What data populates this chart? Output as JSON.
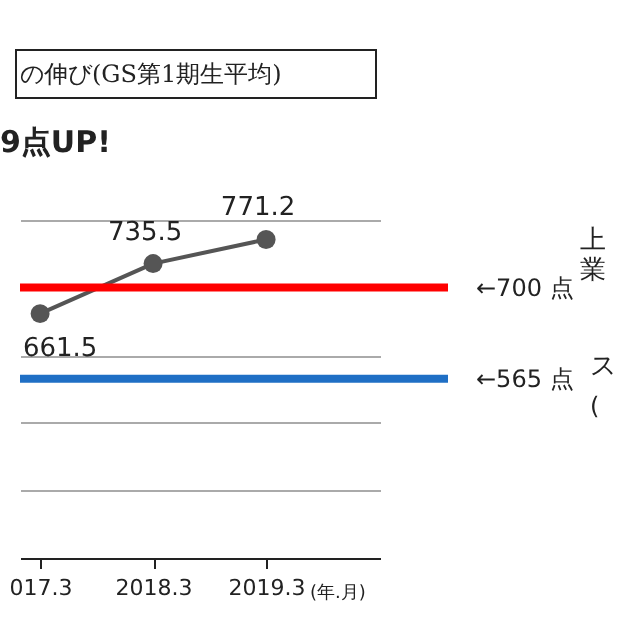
{
  "chart_data": {
    "type": "line",
    "title": "の伸び(GS第1期生平均)",
    "categories": [
      "017.3",
      "2018.3",
      "2019.3"
    ],
    "series": [
      {
        "color": "#555555",
        "values": [
          661.5,
          735.5,
          771.2
        ]
      }
    ],
    "xlabel": "(年.月)",
    "data_labels": true,
    "marker": "circle",
    "line_style": "solid",
    "ylim": [
      300,
      800
    ],
    "yticks": [
      {
        "value": 400,
        "label": null
      },
      {
        "value": 500,
        "label": null
      },
      {
        "value": 600,
        "label": null
      },
      {
        "value": 700,
        "label": null
      },
      {
        "value": 800,
        "label": null
      }
    ],
    "grid": "y",
    "tick_labels": "x",
    "ref_lines": [
      {
        "axis": "y",
        "value": 700,
        "label": "←700 点",
        "color": "#ff0000"
      },
      {
        "axis": "y",
        "value": 565,
        "label": "←565 点",
        "color": "#1f6fc5"
      }
    ],
    "annotations": [
      "9点UP!",
      "上",
      "業",
      "ス",
      "("
    ]
  }
}
